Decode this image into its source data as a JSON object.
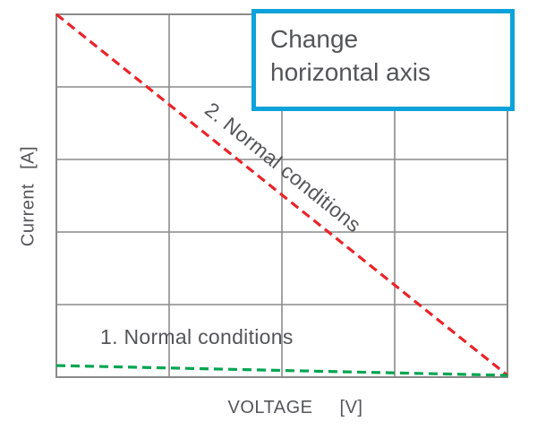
{
  "colors": {
    "grid": "#8a8a8a",
    "text": "#545559",
    "red": "#e92429",
    "green": "#00a551",
    "callout_border": "#0ea2db",
    "background": "#ffffff"
  },
  "labels": {
    "y_axis": "Current",
    "y_axis_unit": "[A]",
    "x_axis": "VOLTAGE",
    "x_axis_unit": "[V]",
    "series1": "1. Normal conditions",
    "series2": "2. Normal conditions"
  },
  "callout": {
    "line1": "Change",
    "line2": "horizontal axis"
  },
  "chart_data": {
    "type": "line",
    "title": "",
    "xlabel": "VOLTAGE [V]",
    "ylabel": "Current [A]",
    "x_tick_labels": [],
    "y_tick_labels": [],
    "grid": true,
    "grid_cols": 4,
    "grid_rows": 5,
    "axes_unlabeled": true,
    "series": [
      {
        "name": "2. Normal conditions",
        "color": "#e92429",
        "line_style": "dashed",
        "x_norm": [
          0,
          1
        ],
        "y_norm": [
          1.0,
          0.005
        ],
        "description": "straight diagonal from top-left to bottom-right"
      },
      {
        "name": "1. Normal conditions",
        "color": "#00a551",
        "line_style": "dashed",
        "x_norm": [
          0,
          1
        ],
        "y_norm": [
          0.032,
          0.005
        ],
        "description": "nearly flat line just above x-axis, slight decline"
      }
    ],
    "annotation": "Change horizontal axis",
    "legend_position": "labels-on-lines"
  }
}
